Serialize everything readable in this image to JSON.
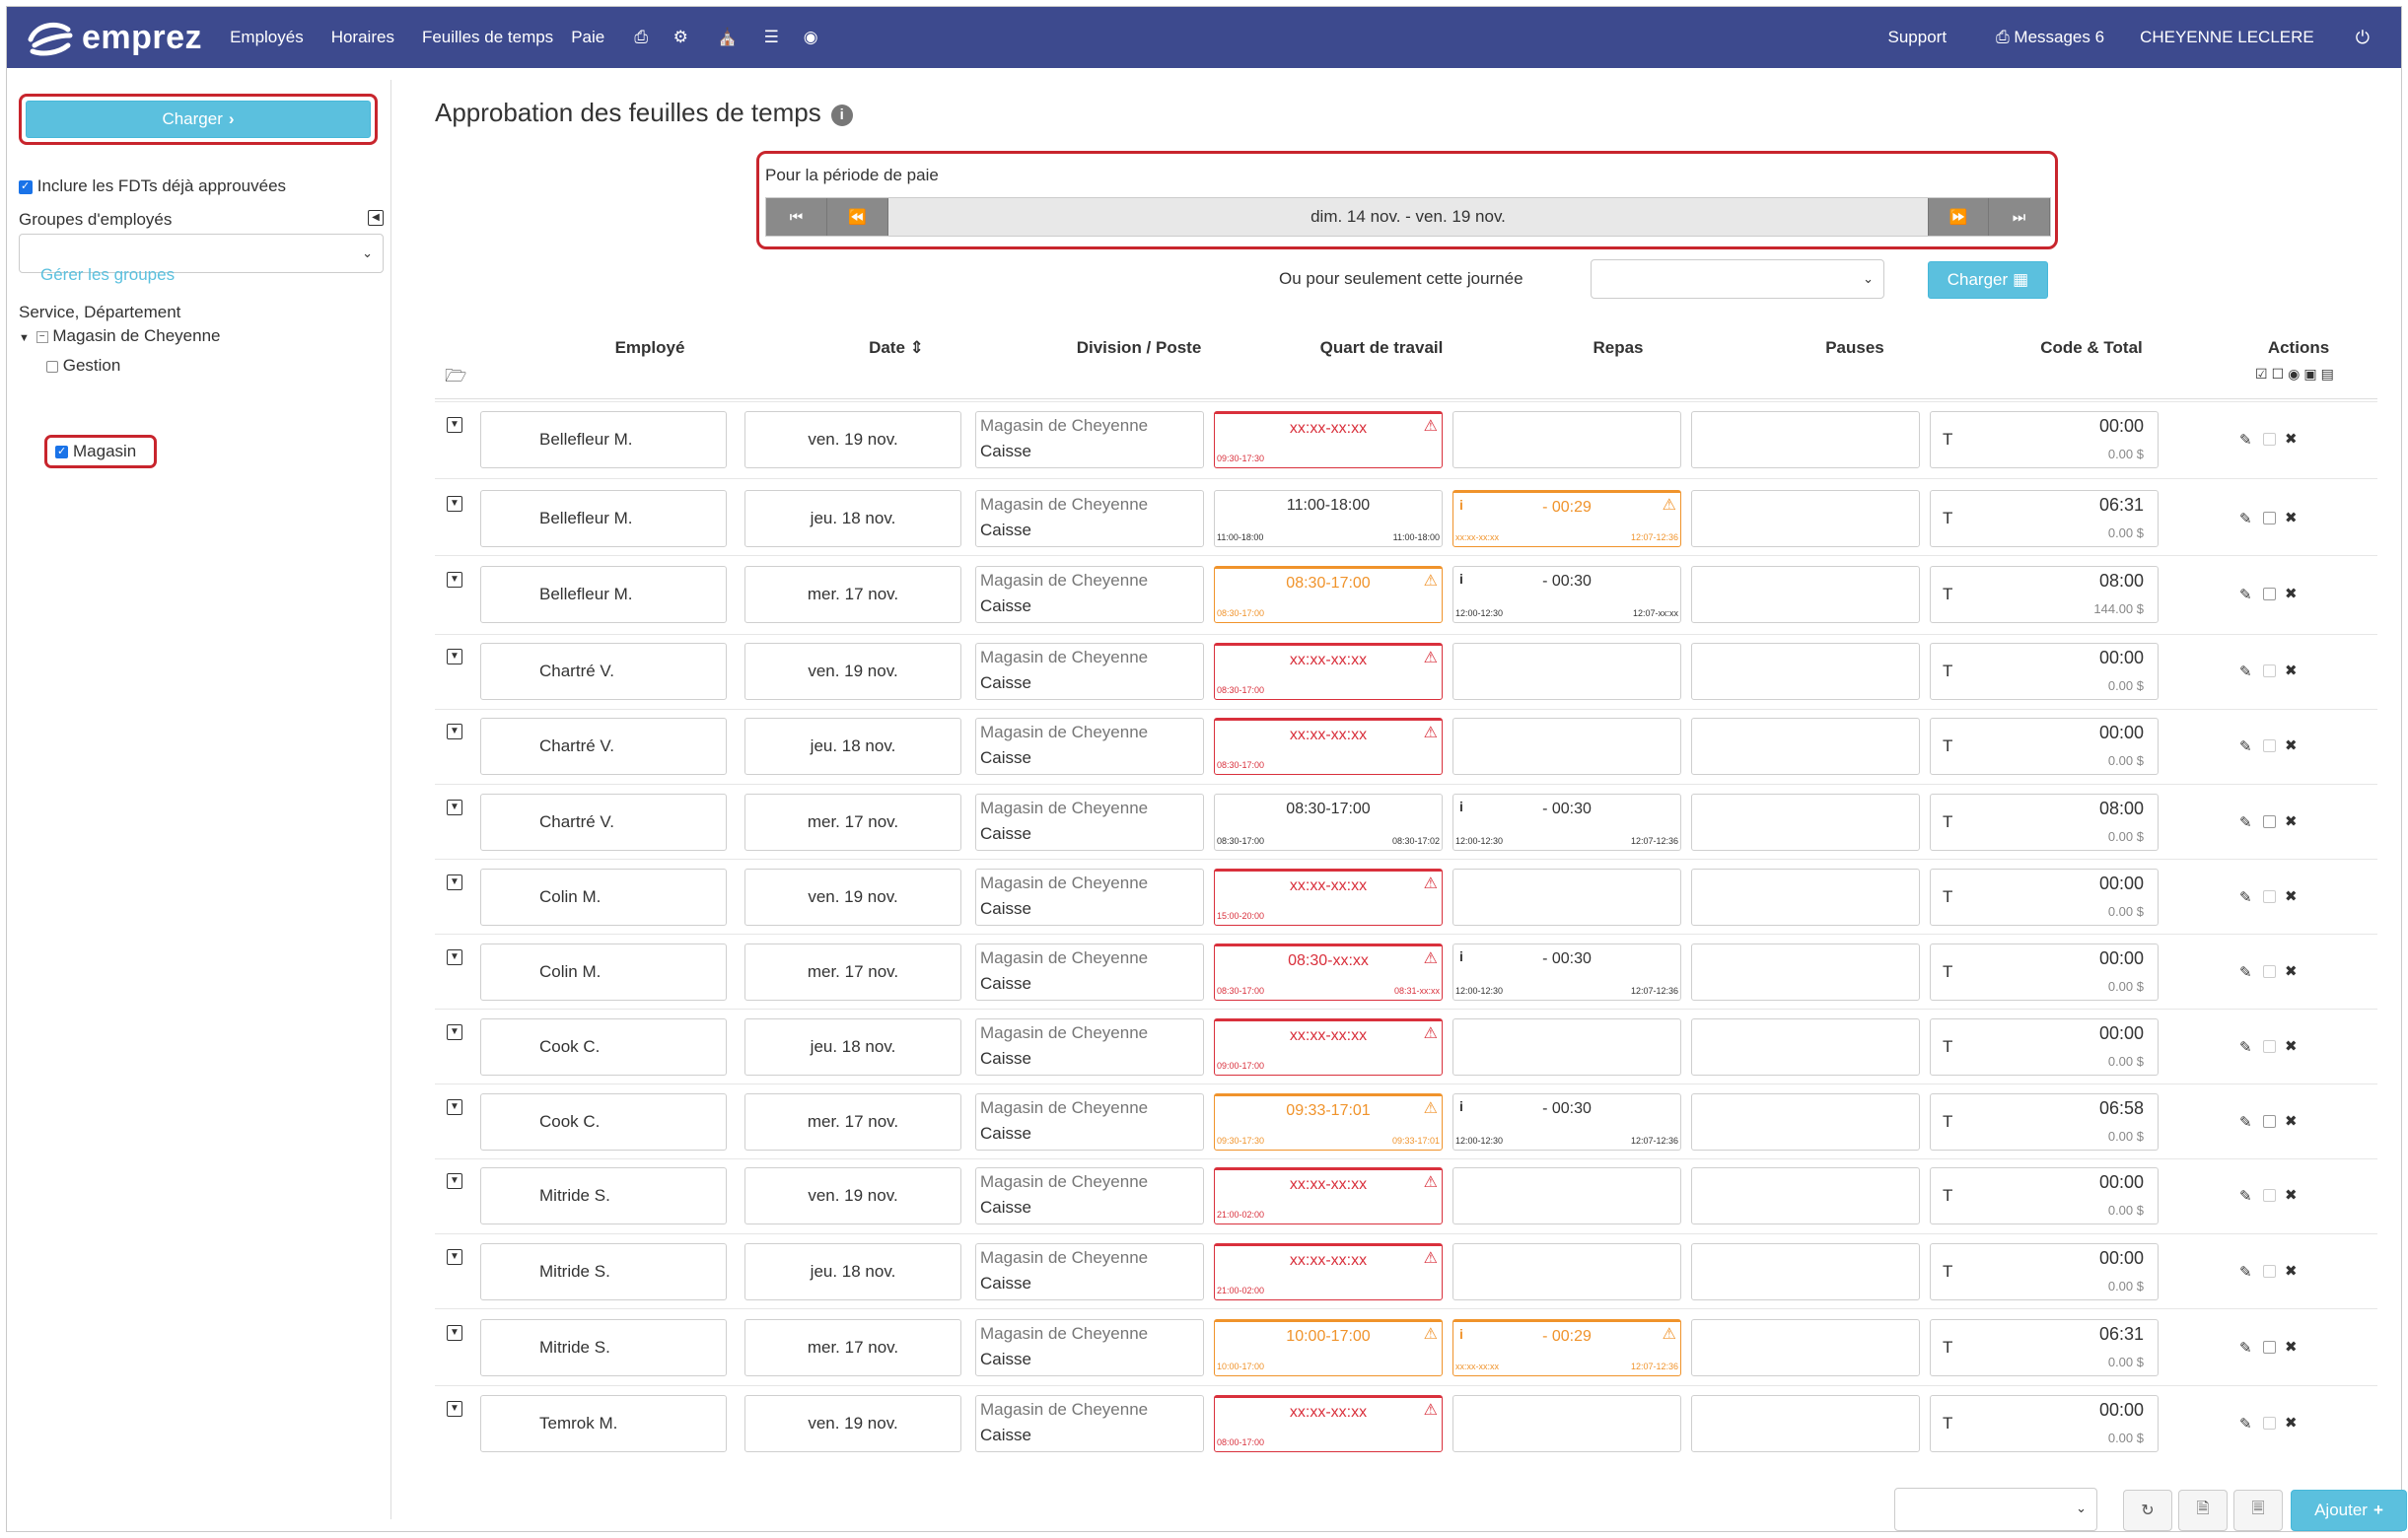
{
  "brand": {
    "name": "emprez",
    "nav_bg": "#3d4a8e",
    "accent": "#5bc0de",
    "highlight": "#c8252d"
  },
  "nav": {
    "items": [
      "Employés",
      "Horaires",
      "Feuilles de temps",
      "Paie"
    ],
    "icons": [
      "print-icon",
      "cogs-icon",
      "sitemap-icon",
      "list-icon",
      "comments-icon"
    ],
    "support": "Support",
    "messages": "Messages 6",
    "user": "CHEYENNE LECLERE"
  },
  "sidebar": {
    "load_button": "Charger",
    "include_approved": "Inclure les FDTs déjà approuvées",
    "groups_label": "Groupes d'employés",
    "groups_value": "",
    "manage_groups": "Gérer les groupes",
    "tree_label": "Service, Département",
    "tree_root": "Magasin de Cheyenne",
    "tree_children": [
      {
        "label": "Gestion",
        "checked": false
      },
      {
        "label": "Magasin",
        "checked": true
      }
    ]
  },
  "main": {
    "title": "Approbation des feuilles de temps",
    "period_label": "Pour la période de paie",
    "period_text": "dim. 14 nov. - ven. 19 nov.",
    "day_label": "Ou pour seulement cette journée",
    "day_value": "",
    "load_button": "Charger"
  },
  "table": {
    "headers": {
      "employee": "Employé",
      "date": "Date",
      "division": "Division / Poste",
      "shift": "Quart de travail",
      "meals": "Repas",
      "breaks": "Pauses",
      "code_total": "Code & Total",
      "actions": "Actions"
    },
    "rows": [
      {
        "name": "Bellefleur M.",
        "date": "ven. 19 nov.",
        "div1": "Magasin de Cheyenne",
        "div2": "Caisse",
        "shift": "xx:xx-xx:xx",
        "shift_sub": "09:30-17:30",
        "shift_sub2": "",
        "shift_state": "red",
        "meal": "",
        "meal_sub": "",
        "meal_sub2": "",
        "meal_state": "none",
        "code": "T",
        "hours": "00:00",
        "money": "0.00 $"
      },
      {
        "name": "Bellefleur M.",
        "date": "jeu. 18 nov.",
        "div1": "Magasin de Cheyenne",
        "div2": "Caisse",
        "shift": "11:00-18:00",
        "shift_sub": "11:00-18:00",
        "shift_sub2": "11:00-18:00",
        "shift_state": "ok",
        "meal": "- 00:29",
        "meal_sub": "xx:xx-xx:xx",
        "meal_sub2": "12:07-12:36",
        "meal_state": "orange",
        "code": "T",
        "hours": "06:31",
        "money": "0.00 $"
      },
      {
        "name": "Bellefleur M.",
        "date": "mer. 17 nov.",
        "div1": "Magasin de Cheyenne",
        "div2": "Caisse",
        "shift": "08:30-17:00",
        "shift_sub": "08:30-17:00",
        "shift_sub2": "",
        "shift_state": "orange",
        "meal": "- 00:30",
        "meal_sub": "12:00-12:30",
        "meal_sub2": "12:07-xx:xx",
        "meal_state": "ok",
        "code": "T",
        "hours": "08:00",
        "money": "144.00 $"
      },
      {
        "name": "Chartré V.",
        "date": "ven. 19 nov.",
        "div1": "Magasin de Cheyenne",
        "div2": "Caisse",
        "shift": "xx:xx-xx:xx",
        "shift_sub": "08:30-17:00",
        "shift_sub2": "",
        "shift_state": "red",
        "meal": "",
        "meal_sub": "",
        "meal_sub2": "",
        "meal_state": "none",
        "code": "T",
        "hours": "00:00",
        "money": "0.00 $"
      },
      {
        "name": "Chartré V.",
        "date": "jeu. 18 nov.",
        "div1": "Magasin de Cheyenne",
        "div2": "Caisse",
        "shift": "xx:xx-xx:xx",
        "shift_sub": "08:30-17:00",
        "shift_sub2": "",
        "shift_state": "red",
        "meal": "",
        "meal_sub": "",
        "meal_sub2": "",
        "meal_state": "none",
        "code": "T",
        "hours": "00:00",
        "money": "0.00 $"
      },
      {
        "name": "Chartré V.",
        "date": "mer. 17 nov.",
        "div1": "Magasin de Cheyenne",
        "div2": "Caisse",
        "shift": "08:30-17:00",
        "shift_sub": "08:30-17:00",
        "shift_sub2": "08:30-17:02",
        "shift_state": "ok",
        "meal": "- 00:30",
        "meal_sub": "12:00-12:30",
        "meal_sub2": "12:07-12:36",
        "meal_state": "ok",
        "code": "T",
        "hours": "08:00",
        "money": "0.00 $"
      },
      {
        "name": "Colin M.",
        "date": "ven. 19 nov.",
        "div1": "Magasin de Cheyenne",
        "div2": "Caisse",
        "shift": "xx:xx-xx:xx",
        "shift_sub": "15:00-20:00",
        "shift_sub2": "",
        "shift_state": "red",
        "meal": "",
        "meal_sub": "",
        "meal_sub2": "",
        "meal_state": "none",
        "code": "T",
        "hours": "00:00",
        "money": "0.00 $"
      },
      {
        "name": "Colin M.",
        "date": "mer. 17 nov.",
        "div1": "Magasin de Cheyenne",
        "div2": "Caisse",
        "shift": "08:30-xx:xx",
        "shift_sub": "08:30-17:00",
        "shift_sub2": "08:31-xx:xx",
        "shift_state": "red",
        "meal": "- 00:30",
        "meal_sub": "12:00-12:30",
        "meal_sub2": "12:07-12:36",
        "meal_state": "ok",
        "code": "T",
        "hours": "00:00",
        "money": "0.00 $"
      },
      {
        "name": "Cook C.",
        "date": "jeu. 18 nov.",
        "div1": "Magasin de Cheyenne",
        "div2": "Caisse",
        "shift": "xx:xx-xx:xx",
        "shift_sub": "09:00-17:00",
        "shift_sub2": "",
        "shift_state": "red",
        "meal": "",
        "meal_sub": "",
        "meal_sub2": "",
        "meal_state": "none",
        "code": "T",
        "hours": "00:00",
        "money": "0.00 $"
      },
      {
        "name": "Cook C.",
        "date": "mer. 17 nov.",
        "div1": "Magasin de Cheyenne",
        "div2": "Caisse",
        "shift": "09:33-17:01",
        "shift_sub": "09:30-17:30",
        "shift_sub2": "09:33-17:01",
        "shift_state": "orange",
        "meal": "- 00:30",
        "meal_sub": "12:00-12:30",
        "meal_sub2": "12:07-12:36",
        "meal_state": "ok",
        "code": "T",
        "hours": "06:58",
        "money": "0.00 $"
      },
      {
        "name": "Mitride S.",
        "date": "ven. 19 nov.",
        "div1": "Magasin de Cheyenne",
        "div2": "Caisse",
        "shift": "xx:xx-xx:xx",
        "shift_sub": "21:00-02:00",
        "shift_sub2": "",
        "shift_state": "red",
        "meal": "",
        "meal_sub": "",
        "meal_sub2": "",
        "meal_state": "none",
        "code": "T",
        "hours": "00:00",
        "money": "0.00 $"
      },
      {
        "name": "Mitride S.",
        "date": "jeu. 18 nov.",
        "div1": "Magasin de Cheyenne",
        "div2": "Caisse",
        "shift": "xx:xx-xx:xx",
        "shift_sub": "21:00-02:00",
        "shift_sub2": "",
        "shift_state": "red",
        "meal": "",
        "meal_sub": "",
        "meal_sub2": "",
        "meal_state": "none",
        "code": "T",
        "hours": "00:00",
        "money": "0.00 $"
      },
      {
        "name": "Mitride S.",
        "date": "mer. 17 nov.",
        "div1": "Magasin de Cheyenne",
        "div2": "Caisse",
        "shift": "10:00-17:00",
        "shift_sub": "10:00-17:00",
        "shift_sub2": "",
        "shift_state": "orange",
        "meal": "- 00:29",
        "meal_sub": "xx:xx-xx:xx",
        "meal_sub2": "12:07-12:36",
        "meal_state": "orange",
        "code": "T",
        "hours": "06:31",
        "money": "0.00 $"
      },
      {
        "name": "Temrok M.",
        "date": "ven. 19 nov.",
        "div1": "Magasin de Cheyenne",
        "div2": "Caisse",
        "shift": "xx:xx-xx:xx",
        "shift_sub": "08:00-17:00",
        "shift_sub2": "",
        "shift_state": "red",
        "meal": "",
        "meal_sub": "",
        "meal_sub2": "",
        "meal_state": "none",
        "code": "T",
        "hours": "00:00",
        "money": "0.00 $"
      }
    ]
  },
  "footer": {
    "add_button": "Ajouter",
    "select_value": ""
  }
}
